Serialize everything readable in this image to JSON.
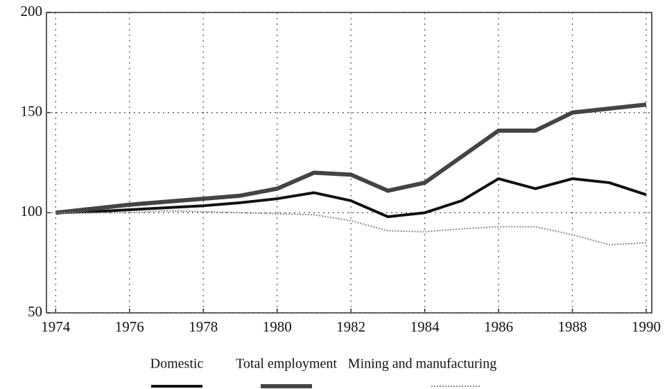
{
  "chart_data": {
    "type": "line",
    "x": [
      1974,
      1975,
      1976,
      1977,
      1978,
      1979,
      1980,
      1981,
      1982,
      1983,
      1984,
      1985,
      1986,
      1987,
      1988,
      1989,
      1990
    ],
    "series": [
      {
        "name": "Domestic",
        "color": "#111111",
        "linewidth": 4,
        "linestyle": "solid",
        "values": [
          100,
          100.5,
          101.5,
          102.5,
          103.5,
          105,
          107,
          110,
          106,
          98,
          100,
          106,
          117,
          112,
          117,
          115,
          109
        ]
      },
      {
        "name": "Total employment",
        "color": "#444444",
        "linewidth": 6,
        "linestyle": "solid",
        "values": [
          100,
          102,
          104,
          105.5,
          107,
          108.5,
          112,
          120,
          119,
          111,
          115,
          128,
          141,
          141,
          150,
          152,
          154
        ]
      },
      {
        "name": "Mining and manufacturing",
        "color": "#888888",
        "linewidth": 2,
        "linestyle": "dotted",
        "values": [
          100,
          100,
          100,
          101,
          100.5,
          100,
          99.5,
          99,
          96,
          91,
          90.5,
          92,
          93,
          93,
          89,
          84,
          85
        ]
      }
    ],
    "xlim": [
      1973.75,
      1990.15
    ],
    "xticks": [
      1974,
      1976,
      1978,
      1980,
      1982,
      1984,
      1986,
      1988,
      1990
    ],
    "ylim": [
      50,
      200
    ],
    "yticks": [
      50,
      100,
      150,
      200
    ],
    "grid": true,
    "legend": "bottom"
  }
}
